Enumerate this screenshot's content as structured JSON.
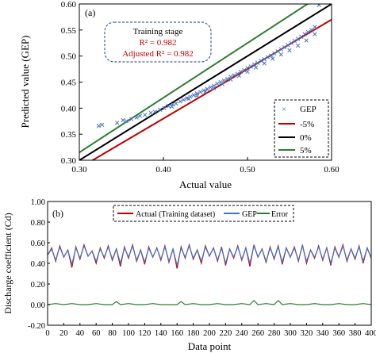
{
  "chart_data": [
    {
      "type": "scatter",
      "panel_label": "(a)",
      "xlabel": "Actual value",
      "ylabel": "Predicted value (GEP)",
      "xlim": [
        0.3,
        0.6
      ],
      "ylim": [
        0.3,
        0.6
      ],
      "xticks": [
        "0.30",
        "0.40",
        "0.50",
        "0.60"
      ],
      "yticks": [
        "0.30",
        "0.35",
        "0.40",
        "0.45",
        "0.50",
        "0.55",
        "0.60"
      ],
      "grid": false,
      "legend_position": "bottom-right",
      "annotation": {
        "title": "Training stage",
        "r2_text": "R² = 0.982",
        "adj_r2_text": "Adjusted R² = 0.982"
      },
      "series": [
        {
          "name": "GEP",
          "kind": "markers",
          "marker": "x",
          "color": "#4472c4",
          "x": [
            0.323,
            0.327,
            0.345,
            0.352,
            0.356,
            0.362,
            0.368,
            0.372,
            0.378,
            0.385,
            0.39,
            0.396,
            0.401,
            0.406,
            0.411,
            0.415,
            0.42,
            0.424,
            0.428,
            0.432,
            0.436,
            0.44,
            0.444,
            0.448,
            0.452,
            0.456,
            0.46,
            0.464,
            0.468,
            0.472,
            0.476,
            0.48,
            0.484,
            0.488,
            0.492,
            0.496,
            0.5,
            0.504,
            0.508,
            0.512,
            0.516,
            0.52,
            0.524,
            0.528,
            0.532,
            0.536,
            0.54,
            0.544,
            0.548,
            0.552,
            0.556,
            0.56,
            0.564,
            0.568,
            0.572,
            0.576,
            0.58,
            0.585,
            0.41,
            0.43,
            0.45,
            0.47,
            0.49,
            0.51,
            0.53,
            0.55,
            0.57,
            0.44,
            0.46,
            0.48,
            0.5,
            0.52,
            0.54,
            0.56,
            0.58
          ],
          "y": [
            0.366,
            0.368,
            0.372,
            0.377,
            0.375,
            0.379,
            0.382,
            0.385,
            0.387,
            0.391,
            0.393,
            0.397,
            0.4,
            0.404,
            0.407,
            0.409,
            0.413,
            0.416,
            0.419,
            0.422,
            0.425,
            0.428,
            0.431,
            0.434,
            0.437,
            0.44,
            0.443,
            0.447,
            0.45,
            0.453,
            0.456,
            0.46,
            0.463,
            0.466,
            0.47,
            0.473,
            0.477,
            0.48,
            0.484,
            0.487,
            0.491,
            0.494,
            0.498,
            0.501,
            0.505,
            0.509,
            0.513,
            0.517,
            0.521,
            0.525,
            0.529,
            0.533,
            0.537,
            0.542,
            0.546,
            0.55,
            0.556,
            0.598,
            0.403,
            0.418,
            0.432,
            0.446,
            0.462,
            0.478,
            0.495,
            0.511,
            0.53,
            0.424,
            0.438,
            0.455,
            0.47,
            0.486,
            0.503,
            0.52,
            0.542
          ]
        },
        {
          "name": "-5%",
          "kind": "line",
          "color": "#c00000",
          "x": [
            0.3,
            0.6
          ],
          "y": [
            0.285,
            0.57
          ]
        },
        {
          "name": "0%",
          "kind": "line",
          "color": "#000000",
          "x": [
            0.3,
            0.6
          ],
          "y": [
            0.3,
            0.6
          ]
        },
        {
          "name": "5%",
          "kind": "line",
          "color": "#2e7d32",
          "x": [
            0.3,
            0.6
          ],
          "y": [
            0.315,
            0.63
          ]
        }
      ]
    },
    {
      "type": "line",
      "panel_label": "(b)",
      "xlabel": "Data point",
      "ylabel": "Discharge coefficient (Cd)",
      "xlim": [
        0,
        400
      ],
      "ylim": [
        -0.2,
        1.0
      ],
      "xticks": [
        "0",
        "20",
        "40",
        "60",
        "80",
        "100",
        "120",
        "140",
        "160",
        "180",
        "200",
        "220",
        "240",
        "260",
        "280",
        "300",
        "320",
        "340",
        "360",
        "380",
        "400"
      ],
      "yticks": [
        "-0.20",
        "0.00",
        "0.20",
        "0.40",
        "0.60",
        "0.80",
        "1.00"
      ],
      "grid": false,
      "legend_position": "top-center",
      "series": [
        {
          "name": "Actual (Training dataset)",
          "color": "#c00000",
          "x": [
            0,
            5,
            10,
            15,
            20,
            25,
            30,
            35,
            40,
            45,
            50,
            55,
            60,
            65,
            70,
            75,
            80,
            85,
            90,
            95,
            100,
            105,
            110,
            115,
            120,
            125,
            130,
            135,
            140,
            145,
            150,
            155,
            160,
            165,
            170,
            175,
            180,
            185,
            190,
            195,
            200,
            205,
            210,
            215,
            220,
            225,
            230,
            235,
            240,
            245,
            250,
            255,
            260,
            265,
            270,
            275,
            280,
            285,
            290,
            295,
            300,
            305,
            310,
            315,
            320,
            325,
            330,
            335,
            340,
            345,
            350,
            355,
            360,
            365,
            370,
            375,
            380,
            385,
            390,
            395,
            400
          ],
          "y": [
            0.48,
            0.55,
            0.42,
            0.57,
            0.46,
            0.53,
            0.36,
            0.56,
            0.44,
            0.58,
            0.47,
            0.52,
            0.4,
            0.55,
            0.45,
            0.57,
            0.43,
            0.54,
            0.37,
            0.56,
            0.45,
            0.58,
            0.42,
            0.53,
            0.39,
            0.56,
            0.46,
            0.55,
            0.43,
            0.57,
            0.41,
            0.54,
            0.35,
            0.56,
            0.45,
            0.58,
            0.44,
            0.53,
            0.4,
            0.57,
            0.47,
            0.55,
            0.42,
            0.56,
            0.38,
            0.54,
            0.45,
            0.57,
            0.43,
            0.55,
            0.37,
            0.58,
            0.46,
            0.54,
            0.41,
            0.56,
            0.44,
            0.57,
            0.39,
            0.55,
            0.46,
            0.56,
            0.42,
            0.58,
            0.4,
            0.53,
            0.45,
            0.57,
            0.43,
            0.55,
            0.38,
            0.56,
            0.46,
            0.58,
            0.42,
            0.54,
            0.44,
            0.57,
            0.4,
            0.55,
            0.45
          ]
        },
        {
          "name": "GEP",
          "color": "#4472c4",
          "x": [
            0,
            5,
            10,
            15,
            20,
            25,
            30,
            35,
            40,
            45,
            50,
            55,
            60,
            65,
            70,
            75,
            80,
            85,
            90,
            95,
            100,
            105,
            110,
            115,
            120,
            125,
            130,
            135,
            140,
            145,
            150,
            155,
            160,
            165,
            170,
            175,
            180,
            185,
            190,
            195,
            200,
            205,
            210,
            215,
            220,
            225,
            230,
            235,
            240,
            245,
            250,
            255,
            260,
            265,
            270,
            275,
            280,
            285,
            290,
            295,
            300,
            305,
            310,
            315,
            320,
            325,
            330,
            335,
            340,
            345,
            350,
            355,
            360,
            365,
            370,
            375,
            380,
            385,
            390,
            395,
            400
          ],
          "y": [
            0.48,
            0.54,
            0.43,
            0.56,
            0.46,
            0.53,
            0.39,
            0.55,
            0.45,
            0.57,
            0.47,
            0.52,
            0.42,
            0.54,
            0.46,
            0.56,
            0.44,
            0.54,
            0.4,
            0.55,
            0.46,
            0.57,
            0.43,
            0.53,
            0.41,
            0.55,
            0.46,
            0.55,
            0.44,
            0.56,
            0.42,
            0.54,
            0.38,
            0.55,
            0.46,
            0.57,
            0.45,
            0.53,
            0.42,
            0.56,
            0.47,
            0.55,
            0.43,
            0.55,
            0.4,
            0.54,
            0.46,
            0.56,
            0.44,
            0.55,
            0.4,
            0.57,
            0.46,
            0.54,
            0.42,
            0.55,
            0.45,
            0.56,
            0.41,
            0.55,
            0.46,
            0.55,
            0.43,
            0.57,
            0.42,
            0.53,
            0.46,
            0.56,
            0.44,
            0.55,
            0.4,
            0.55,
            0.46,
            0.57,
            0.43,
            0.54,
            0.45,
            0.56,
            0.42,
            0.55,
            0.45
          ]
        },
        {
          "name": "Error",
          "color": "#2e7d32",
          "x": [
            0,
            10,
            20,
            30,
            40,
            50,
            60,
            70,
            80,
            85,
            90,
            100,
            110,
            120,
            130,
            140,
            150,
            160,
            165,
            170,
            180,
            190,
            200,
            210,
            220,
            230,
            240,
            250,
            255,
            260,
            270,
            280,
            285,
            290,
            300,
            310,
            320,
            330,
            340,
            350,
            360,
            370,
            380,
            390,
            400
          ],
          "y": [
            0.0,
            0.01,
            0.0,
            0.01,
            0.0,
            0.0,
            0.01,
            0.0,
            0.0,
            0.03,
            0.0,
            0.01,
            0.0,
            0.0,
            0.01,
            0.0,
            0.0,
            0.0,
            0.03,
            0.0,
            0.01,
            0.0,
            0.0,
            0.01,
            0.0,
            0.0,
            0.01,
            0.0,
            0.04,
            0.0,
            0.01,
            0.0,
            0.04,
            0.0,
            0.01,
            0.0,
            0.0,
            0.01,
            0.0,
            0.0,
            0.01,
            0.0,
            0.0,
            0.01,
            0.0
          ]
        }
      ]
    }
  ]
}
